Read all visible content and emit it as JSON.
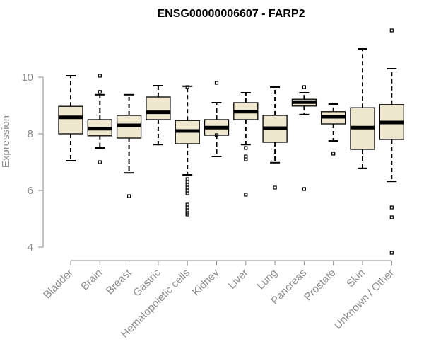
{
  "chart_data": {
    "type": "box",
    "title": "ENSG00000006607 - FARP2",
    "xlabel": "",
    "ylabel": "Expression",
    "ylim": [
      3.6,
      11.7
    ],
    "yticks": [
      4,
      6,
      8,
      10
    ],
    "grid": false,
    "colors": {
      "box_fill": "#efe8cf",
      "box_stroke": "#000000",
      "axis": "#8c8c8c"
    },
    "categories": [
      "Bladder",
      "Brain",
      "Breast",
      "Gastric",
      "Hematopoietic cells",
      "Kidney",
      "Liver",
      "Lung",
      "Pancreas",
      "Prostate",
      "Skin",
      "Unknown / Other"
    ],
    "boxes": [
      {
        "min": 7.05,
        "q1": 8.0,
        "median": 8.58,
        "q3": 8.97,
        "max": 10.05,
        "outliers": []
      },
      {
        "min": 7.5,
        "q1": 7.93,
        "median": 8.18,
        "q3": 8.5,
        "max": 9.38,
        "outliers": [
          10.05,
          9.48,
          7.0
        ]
      },
      {
        "min": 6.62,
        "q1": 7.85,
        "median": 8.3,
        "q3": 8.65,
        "max": 9.38,
        "outliers": [
          5.8
        ]
      },
      {
        "min": 7.62,
        "q1": 8.5,
        "median": 8.76,
        "q3": 9.3,
        "max": 9.7,
        "outliers": []
      },
      {
        "min": 6.55,
        "q1": 7.65,
        "median": 8.1,
        "q3": 8.47,
        "max": 9.68,
        "outliers": [
          9.65,
          6.4,
          6.3,
          6.2,
          6.1,
          6.0,
          5.9,
          5.5,
          5.4,
          5.3,
          5.2,
          5.15
        ]
      },
      {
        "min": 7.2,
        "q1": 7.95,
        "median": 8.22,
        "q3": 8.5,
        "max": 9.1,
        "outliers": [
          9.8,
          7.95
        ]
      },
      {
        "min": 7.62,
        "q1": 8.5,
        "median": 8.78,
        "q3": 9.1,
        "max": 9.45,
        "outliers": [
          7.5,
          7.2,
          7.1,
          5.85
        ]
      },
      {
        "min": 6.98,
        "q1": 7.7,
        "median": 8.2,
        "q3": 8.65,
        "max": 9.65,
        "outliers": [
          6.1
        ]
      },
      {
        "min": 8.68,
        "q1": 8.98,
        "median": 9.12,
        "q3": 9.22,
        "max": 9.45,
        "outliers": [
          9.65,
          6.05
        ]
      },
      {
        "min": 7.75,
        "q1": 8.35,
        "median": 8.6,
        "q3": 8.78,
        "max": 9.05,
        "outliers": [
          7.3
        ]
      },
      {
        "min": 6.78,
        "q1": 7.45,
        "median": 8.22,
        "q3": 8.92,
        "max": 11.0,
        "outliers": []
      },
      {
        "min": 6.32,
        "q1": 7.8,
        "median": 8.4,
        "q3": 9.03,
        "max": 10.3,
        "outliers": [
          11.65,
          5.4,
          5.05,
          3.8
        ]
      }
    ]
  }
}
